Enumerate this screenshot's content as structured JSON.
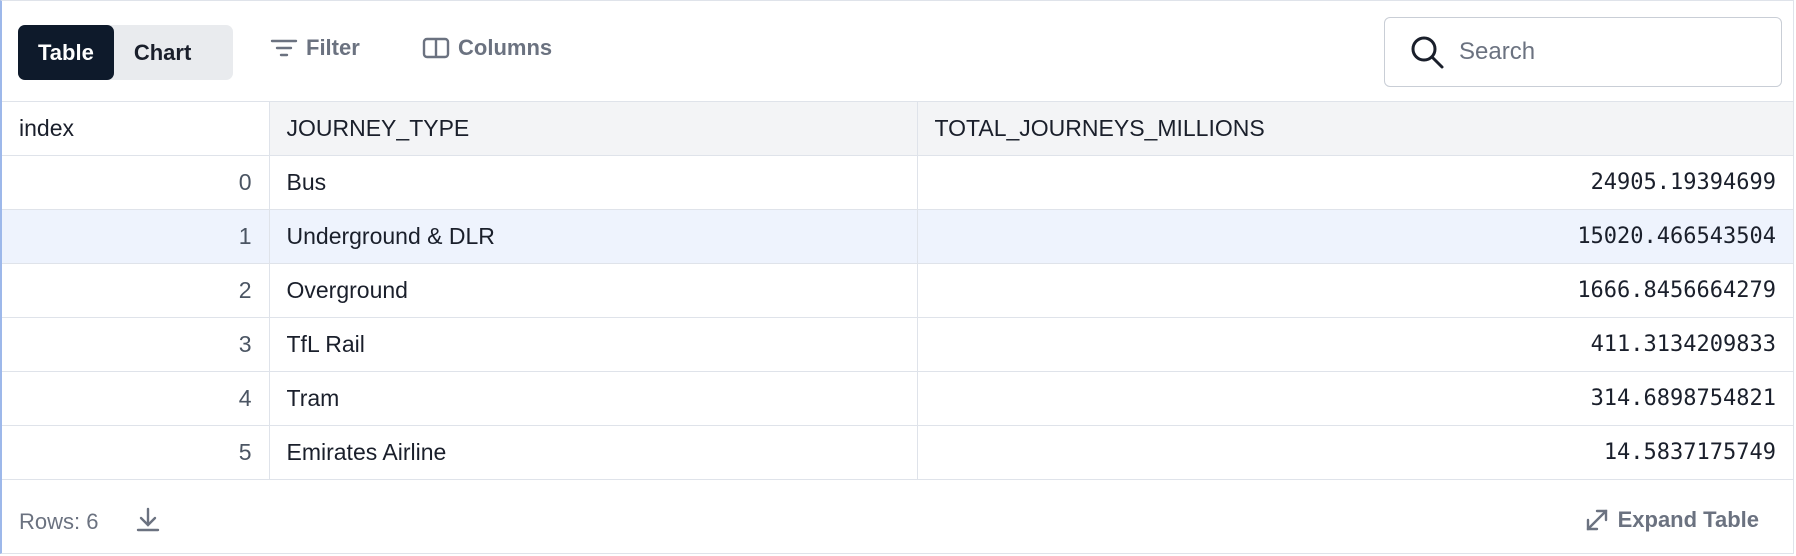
{
  "toolbar": {
    "tabs": [
      "Table",
      "Chart"
    ],
    "filter": "Filter",
    "columns": "Columns",
    "search_placeholder": "Search"
  },
  "table": {
    "headers": [
      "index",
      "JOURNEY_TYPE",
      "TOTAL_JOURNEYS_MILLIONS"
    ],
    "rows": [
      [
        "0",
        "Bus",
        "24905.19394699"
      ],
      [
        "1",
        "Underground & DLR",
        "15020.466543504"
      ],
      [
        "2",
        "Overground",
        "1666.8456664279"
      ],
      [
        "3",
        "TfL Rail",
        "411.3134209833"
      ],
      [
        "4",
        "Tram",
        "314.6898754821"
      ],
      [
        "5",
        "Emirates Airline",
        "14.5837175749"
      ]
    ]
  },
  "footer": {
    "rows_label": "Rows: 6",
    "expand": "Expand Table"
  }
}
